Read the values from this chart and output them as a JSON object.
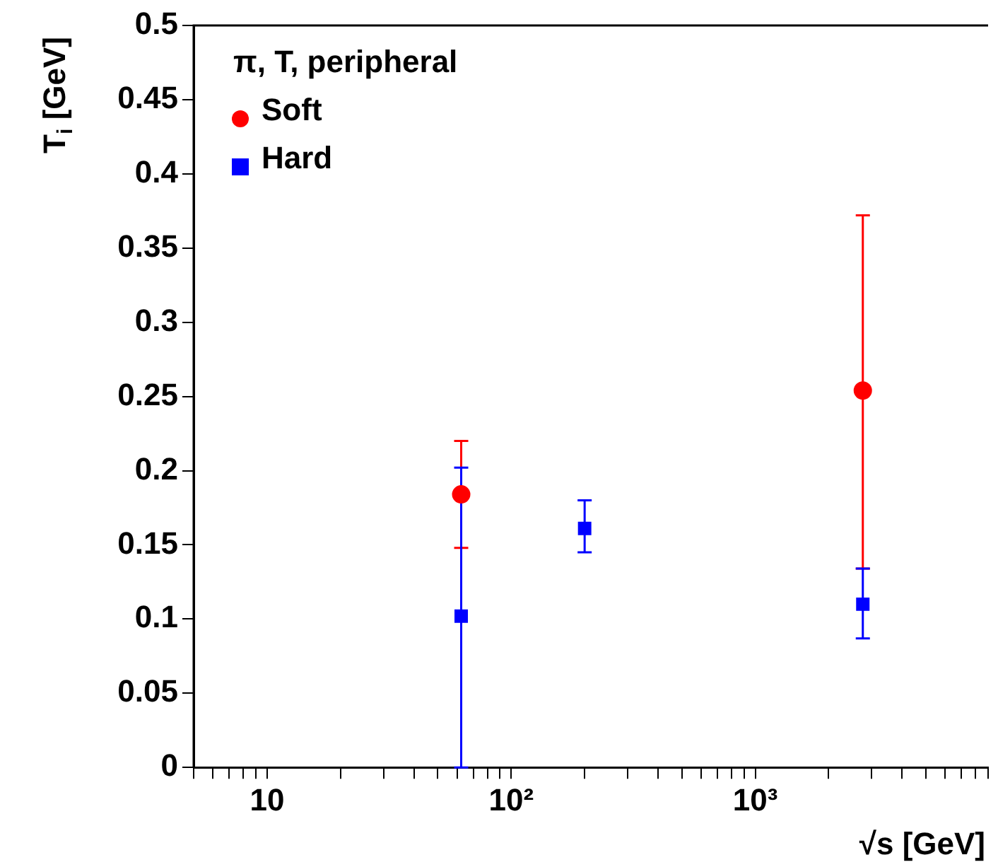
{
  "chart_data": {
    "type": "scatter",
    "xlabel": "√s [GeV]",
    "ylabel": "T$_{i}$ [GeV]",
    "legend_title": "π, T, peripheral",
    "log": "x",
    "legend": "top left",
    "grid": false,
    "xlim": [
      5,
      9000
    ],
    "xticks": [
      {
        "value": 10,
        "label": "10"
      },
      {
        "value": 100,
        "label": "10²"
      },
      {
        "value": 1000,
        "label": "10³"
      }
    ],
    "ylim": [
      0,
      0.5
    ],
    "yticks": [
      0,
      0.05,
      0.1,
      0.15,
      0.2,
      0.25,
      0.3,
      0.35,
      0.4,
      0.45,
      0.5
    ],
    "series": [
      {
        "name": "Soft",
        "color": "#ff0000",
        "marker": "circle",
        "x": [
          62.4,
          2760
        ],
        "values": [
          0.184,
          0.254
        ],
        "errors": [
          [
            0.148,
            0.22
          ],
          [
            0.134,
            0.372
          ]
        ]
      },
      {
        "name": "Hard",
        "color": "#0000ff",
        "marker": "square",
        "x": [
          62.4,
          200,
          2760
        ],
        "values": [
          0.102,
          0.161,
          0.11
        ],
        "errors": [
          [
            0,
            0.202
          ],
          [
            0.145,
            0.18
          ],
          [
            0.087,
            0.134
          ]
        ]
      }
    ]
  }
}
